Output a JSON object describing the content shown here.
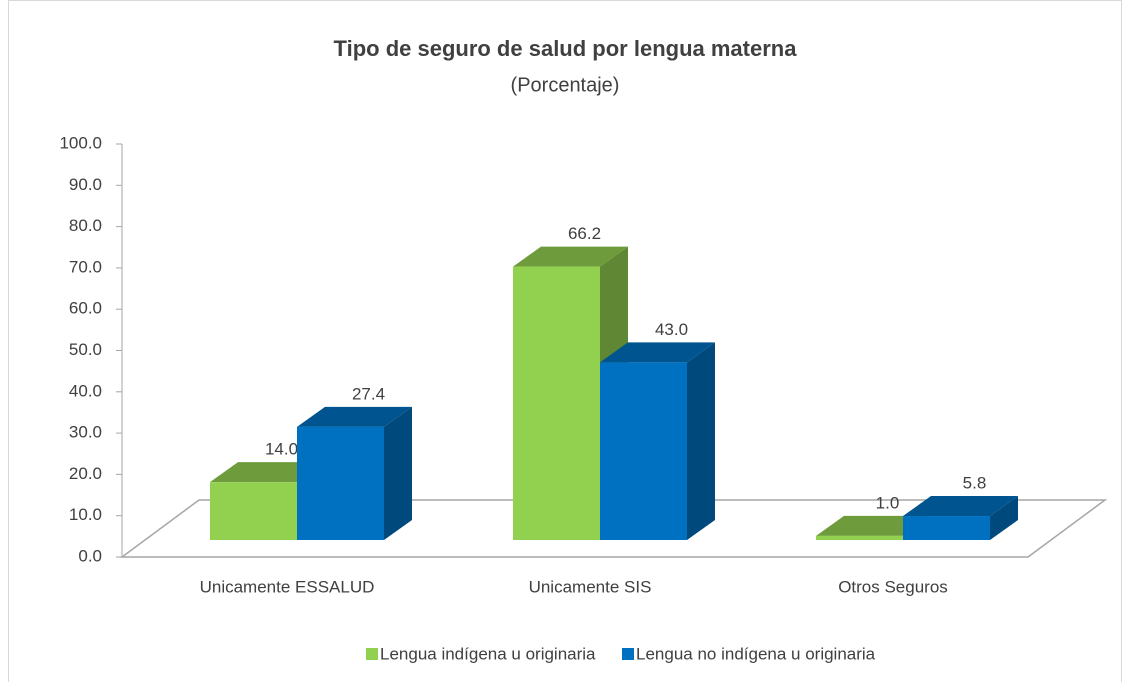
{
  "chart_data": {
    "type": "bar3d",
    "title": "Tipo de seguro de salud por lengua materna",
    "subtitle": "(Porcentaje)",
    "categories": [
      "Unicamente ESSALUD",
      "Unicamente  SIS",
      "Otros Seguros"
    ],
    "series": [
      {
        "name": "Lengua indígena u originaria",
        "color": "#92d050",
        "values": [
          14.0,
          66.2,
          1.0
        ],
        "value_labels": [
          "14.0",
          "66.2",
          "1.0"
        ]
      },
      {
        "name": "Lengua no indígena u originaria",
        "color": "#0070c0",
        "values": [
          27.4,
          43.0,
          5.8
        ],
        "value_labels": [
          "27.4",
          "43.0",
          "5.8"
        ]
      }
    ],
    "ylim": [
      0,
      100
    ],
    "yticks": [
      {
        "value": 0,
        "label": "0.0"
      },
      {
        "value": 10,
        "label": "10.0"
      },
      {
        "value": 20,
        "label": "20.0"
      },
      {
        "value": 30,
        "label": "30.0"
      },
      {
        "value": 40,
        "label": "40.0"
      },
      {
        "value": 50,
        "label": "50.0"
      },
      {
        "value": 60,
        "label": "60.0"
      },
      {
        "value": 70,
        "label": "70.0"
      },
      {
        "value": 80,
        "label": "80.0"
      },
      {
        "value": 90,
        "label": "90.0"
      },
      {
        "value": 100,
        "label": "100.0"
      }
    ],
    "legend": "bottom"
  }
}
